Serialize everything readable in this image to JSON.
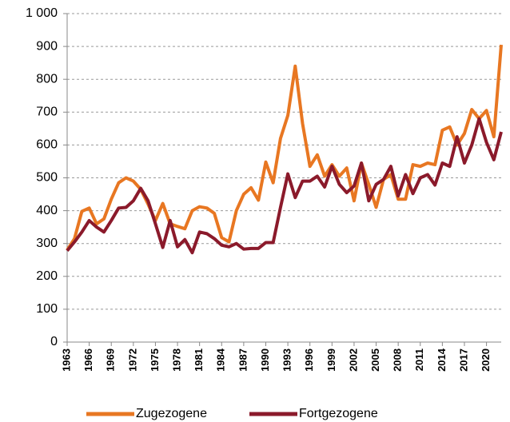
{
  "chart_data": {
    "type": "line",
    "x": [
      1963,
      1964,
      1965,
      1966,
      1967,
      1968,
      1969,
      1970,
      1971,
      1972,
      1973,
      1974,
      1975,
      1976,
      1977,
      1978,
      1979,
      1980,
      1981,
      1982,
      1983,
      1984,
      1985,
      1986,
      1987,
      1988,
      1989,
      1990,
      1991,
      1992,
      1993,
      1994,
      1995,
      1996,
      1997,
      1998,
      1999,
      2000,
      2001,
      2002,
      2003,
      2004,
      2005,
      2006,
      2007,
      2008,
      2009,
      2010,
      2011,
      2012,
      2013,
      2014,
      2015,
      2016,
      2017,
      2018,
      2019,
      2020,
      2021,
      2022
    ],
    "series": [
      {
        "name": "Zugezogene",
        "color": "#e87722",
        "values": [
          280,
          315,
          398,
          408,
          360,
          375,
          435,
          485,
          500,
          490,
          465,
          420,
          370,
          422,
          360,
          352,
          345,
          400,
          412,
          408,
          392,
          318,
          305,
          400,
          450,
          470,
          432,
          548,
          485,
          620,
          690,
          840,
          665,
          535,
          570,
          505,
          540,
          505,
          530,
          430,
          545,
          480,
          410,
          495,
          510,
          435,
          435,
          540,
          535,
          545,
          540,
          645,
          655,
          600,
          635,
          708,
          680,
          705,
          625,
          905
        ]
      },
      {
        "name": "Fortgezogene",
        "color": "#8b1a2b",
        "values": [
          278,
          305,
          335,
          370,
          350,
          335,
          370,
          408,
          410,
          430,
          468,
          430,
          360,
          288,
          370,
          290,
          312,
          272,
          335,
          330,
          315,
          295,
          290,
          300,
          283,
          285,
          285,
          303,
          303,
          410,
          512,
          440,
          490,
          490,
          505,
          472,
          535,
          480,
          455,
          475,
          545,
          430,
          480,
          495,
          535,
          445,
          510,
          452,
          500,
          510,
          478,
          545,
          535,
          625,
          545,
          600,
          680,
          608,
          555,
          640
        ]
      }
    ],
    "xlim": [
      1963,
      2022
    ],
    "xticks": [
      1963,
      1966,
      1969,
      1972,
      1975,
      1978,
      1981,
      1984,
      1987,
      1990,
      1993,
      1996,
      1999,
      2002,
      2005,
      2008,
      2011,
      2014,
      2017,
      2020
    ],
    "ylim": [
      0,
      1000
    ],
    "yticks": [
      0,
      100,
      200,
      300,
      400,
      500,
      600,
      700,
      800,
      900,
      {
        "value": 1000,
        "label": "1 000"
      }
    ],
    "grid": true,
    "legend": "bottom"
  }
}
